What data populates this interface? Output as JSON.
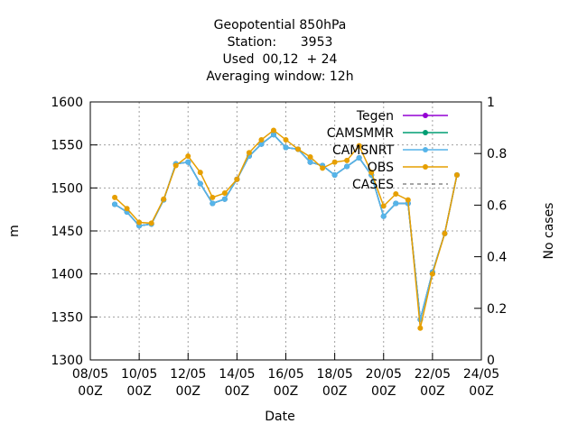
{
  "chart_data": {
    "type": "line",
    "title": [
      "Geopotential 850hPa",
      "Station:      3953",
      "Used  00,12  + 24",
      "Averaging window: 12h"
    ],
    "xlabel": "Date",
    "ylabel": "m",
    "y2label": "No cases",
    "x": [
      "09/05 00Z",
      "09/05 12Z",
      "10/05 00Z",
      "10/05 12Z",
      "11/05 00Z",
      "11/05 12Z",
      "12/05 00Z",
      "12/05 12Z",
      "13/05 00Z",
      "13/05 12Z",
      "14/05 00Z",
      "14/05 12Z",
      "15/05 00Z",
      "15/05 12Z",
      "16/05 00Z",
      "16/05 12Z",
      "17/05 00Z",
      "17/05 12Z",
      "18/05 00Z",
      "18/05 12Z",
      "19/05 00Z",
      "19/05 12Z",
      "20/05 00Z",
      "20/05 12Z",
      "21/05 00Z",
      "21/05 12Z",
      "22/05 00Z",
      "22/05 12Z",
      "23/05 00Z"
    ],
    "xlim": [
      "08/05 00Z",
      "24/05 00Z"
    ],
    "xticks": [
      "08/05 00Z",
      "10/05 00Z",
      "12/05 00Z",
      "14/05 00Z",
      "16/05 00Z",
      "18/05 00Z",
      "20/05 00Z",
      "22/05 00Z",
      "24/05 00Z"
    ],
    "ylim": [
      1300,
      1600
    ],
    "yticks": [
      1300,
      1350,
      1400,
      1450,
      1500,
      1550,
      1600
    ],
    "y2lim": [
      0,
      1
    ],
    "y2ticks": [
      0,
      0.2,
      0.4,
      0.6,
      0.8,
      1
    ],
    "grid": true,
    "legend": "top-right",
    "series": [
      {
        "name": "Tegen",
        "color": "#9400d3",
        "values": [
          1481,
          1472,
          1456,
          1458,
          1486,
          1528,
          1530,
          1505,
          1482,
          1487,
          1510,
          1537,
          1551,
          1562,
          1547,
          1545,
          1530,
          1526,
          1515,
          1525,
          1535,
          1515,
          1467,
          1482,
          1482,
          1347,
          1402,
          1447,
          1515
        ]
      },
      {
        "name": "CAMSMMR",
        "color": "#009e73",
        "values": [
          1481,
          1472,
          1456,
          1458,
          1486,
          1528,
          1530,
          1505,
          1482,
          1487,
          1510,
          1537,
          1551,
          1562,
          1547,
          1545,
          1530,
          1526,
          1515,
          1525,
          1535,
          1515,
          1467,
          1482,
          1482,
          1347,
          1402,
          1447,
          1515
        ]
      },
      {
        "name": "CAMSNRT",
        "color": "#56b4e9",
        "values": [
          1481,
          1472,
          1456,
          1458,
          1486,
          1528,
          1530,
          1505,
          1482,
          1487,
          1510,
          1537,
          1551,
          1562,
          1547,
          1545,
          1530,
          1526,
          1515,
          1525,
          1535,
          1515,
          1467,
          1482,
          1482,
          1347,
          1402,
          1447,
          1515
        ]
      },
      {
        "name": "OBS",
        "color": "#e69f00",
        "values": [
          1489,
          1476,
          1460,
          1459,
          1487,
          1526,
          1537,
          1518,
          1489,
          1494,
          1510,
          1541,
          1556,
          1567,
          1556,
          1545,
          1536,
          1523,
          1530,
          1532,
          1549,
          1518,
          1479,
          1493,
          1486,
          1337,
          1400,
          1447,
          1515
        ]
      },
      {
        "name": "CASES",
        "color": "#888888",
        "dashed": true,
        "axis": "y2",
        "values": [
          null,
          null,
          null,
          null,
          null,
          null,
          null,
          null,
          null,
          null,
          null,
          null,
          null,
          null,
          null,
          null,
          null,
          null,
          null,
          null,
          null,
          null,
          null,
          null,
          null,
          null,
          null,
          null,
          null
        ]
      }
    ]
  }
}
